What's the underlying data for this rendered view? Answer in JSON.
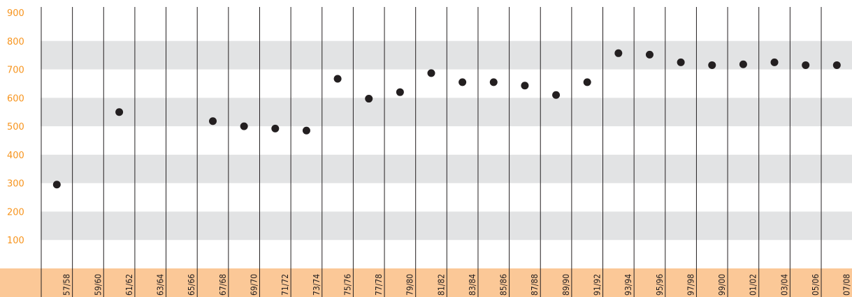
{
  "colors": {
    "band": "#e2e3e4",
    "axis_strip": "#fbc897",
    "ytick_text": "#f7941d",
    "gridline": "#231f20",
    "point": "#231f20"
  },
  "chart_data": {
    "type": "scatter",
    "title": "",
    "xlabel": "",
    "ylabel": "",
    "ylim": [
      0,
      900
    ],
    "yticks": [
      100,
      200,
      300,
      400,
      500,
      600,
      700,
      800,
      900
    ],
    "categories": [
      "57/58",
      "59/60",
      "61/62",
      "63/64",
      "65/66",
      "67/68",
      "69/70",
      "71/72",
      "73/74",
      "75/76",
      "77/78",
      "79/80",
      "81/82",
      "83/84",
      "85/86",
      "87/88",
      "89/90",
      "91/92",
      "93/94",
      "95/96",
      "97/98",
      "99/00",
      "01/02",
      "03/04",
      "05/06",
      "07/08"
    ],
    "series": [
      {
        "values": [
          295,
          null,
          550,
          null,
          null,
          518,
          500,
          492,
          485,
          667,
          597,
          620,
          687,
          655,
          655,
          643,
          610,
          655,
          757,
          752,
          725,
          715,
          718,
          725,
          715,
          715
        ]
      }
    ],
    "bands": [
      [
        100,
        200
      ],
      [
        300,
        400
      ],
      [
        500,
        600
      ],
      [
        700,
        800
      ]
    ],
    "grid": "vertical lines between categories, alternating horizontal bands"
  }
}
